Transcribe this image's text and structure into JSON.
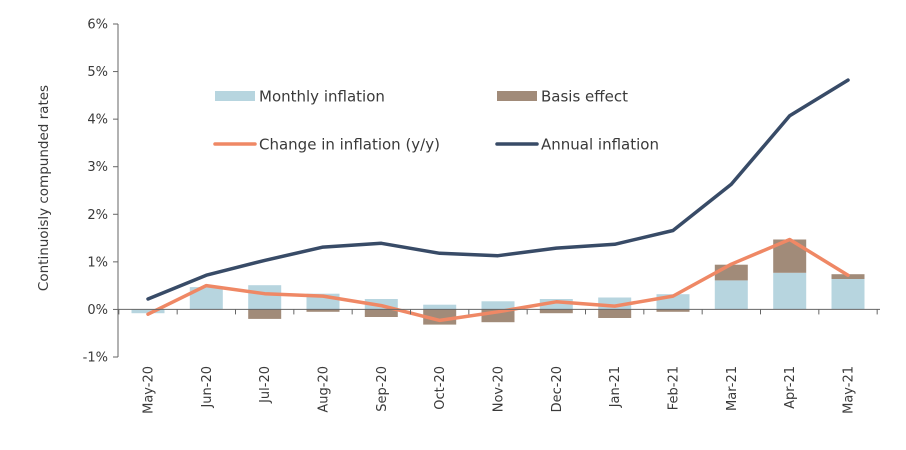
{
  "chart_data": {
    "type": "bar",
    "title": "",
    "xlabel": "",
    "ylabel": "Continuoisly compunded rates",
    "ylim": [
      -1,
      6
    ],
    "y_ticks": [
      "-1%",
      "0%",
      "1%",
      "2%",
      "3%",
      "4%",
      "5%",
      "6%"
    ],
    "y_tick_values": [
      -1,
      0,
      1,
      2,
      3,
      4,
      5,
      6
    ],
    "grid": false,
    "legend_position": "top-center",
    "categories": [
      "May-20",
      "Jun-20",
      "Jul-20",
      "Aug-20",
      "Sep-20",
      "Oct-20",
      "Nov-20",
      "Dec-20",
      "Jan-21",
      "Feb-21",
      "Mar-21",
      "Apr-21",
      "May-21"
    ],
    "series": [
      {
        "name": "Monthly inflation",
        "kind": "bar",
        "color": "#b7d5df",
        "values": [
          -0.08,
          0.47,
          0.51,
          0.33,
          0.22,
          0.1,
          0.17,
          0.22,
          0.25,
          0.32,
          0.61,
          0.77,
          0.64
        ]
      },
      {
        "name": "Basis effect",
        "kind": "bar",
        "color": "#a18b79",
        "values": [
          0.0,
          0.0,
          -0.2,
          -0.05,
          -0.16,
          -0.32,
          -0.27,
          -0.08,
          -0.18,
          -0.05,
          0.33,
          0.7,
          0.1
        ]
      },
      {
        "name": "Change in inflation (y/y)",
        "kind": "line",
        "color": "#ef8865",
        "values": [
          -0.1,
          0.5,
          0.33,
          0.28,
          0.08,
          -0.23,
          -0.05,
          0.16,
          0.07,
          0.28,
          0.95,
          1.47,
          0.72
        ]
      },
      {
        "name": "Annual inflation",
        "kind": "line",
        "color": "#384b67",
        "values": [
          0.22,
          0.72,
          1.03,
          1.31,
          1.39,
          1.18,
          1.13,
          1.29,
          1.37,
          1.66,
          2.63,
          4.07,
          4.82
        ]
      }
    ]
  }
}
